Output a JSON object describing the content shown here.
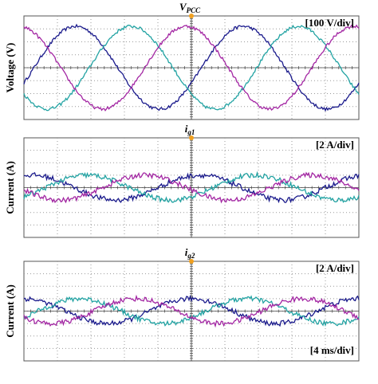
{
  "chart_data": [
    {
      "type": "line",
      "title": "V",
      "title_sub": "PCC",
      "ylabel": "Voltage (V)",
      "scale": "[100 V/div]",
      "divisions": [
        10,
        8
      ],
      "period_div": 5,
      "ripple_div": 0.12,
      "series": [
        {
          "color": "#1a1a8c",
          "amplitude_div": 3.2,
          "peak_div": 1.55
        },
        {
          "color": "#22a3a3",
          "amplitude_div": 3.2,
          "peak_div": 3.2
        },
        {
          "color": "#a326a3",
          "amplitude_div": 3.2,
          "peak_div": 4.85
        }
      ]
    },
    {
      "type": "line",
      "title": "i",
      "title_sub": "g1",
      "ylabel": "Current (A)",
      "scale": "[2 A/div]",
      "divisions": [
        10,
        8
      ],
      "period_div": 5,
      "ripple_div": 0.2,
      "series": [
        {
          "color": "#1a1a8c",
          "amplitude_div": 1.0,
          "peak_div": 0.25
        },
        {
          "color": "#22a3a3",
          "amplitude_div": 1.0,
          "peak_div": 1.9
        },
        {
          "color": "#a326a3",
          "amplitude_div": 1.0,
          "peak_div": 3.6
        }
      ]
    },
    {
      "type": "line",
      "title": "i",
      "title_sub": "g2",
      "ylabel": "Current (A)",
      "scale": "[2 A/div]",
      "time_scale": "[4 ms/div]",
      "divisions": [
        10,
        8
      ],
      "period_div": 5,
      "ripple_div": 0.2,
      "series": [
        {
          "color": "#1a1a8c",
          "amplitude_div": 1.0,
          "peak_div": 0.0
        },
        {
          "color": "#22a3a3",
          "amplitude_div": 1.0,
          "peak_div": 1.67
        },
        {
          "color": "#a326a3",
          "amplitude_div": 1.0,
          "peak_div": 3.33
        }
      ]
    }
  ]
}
